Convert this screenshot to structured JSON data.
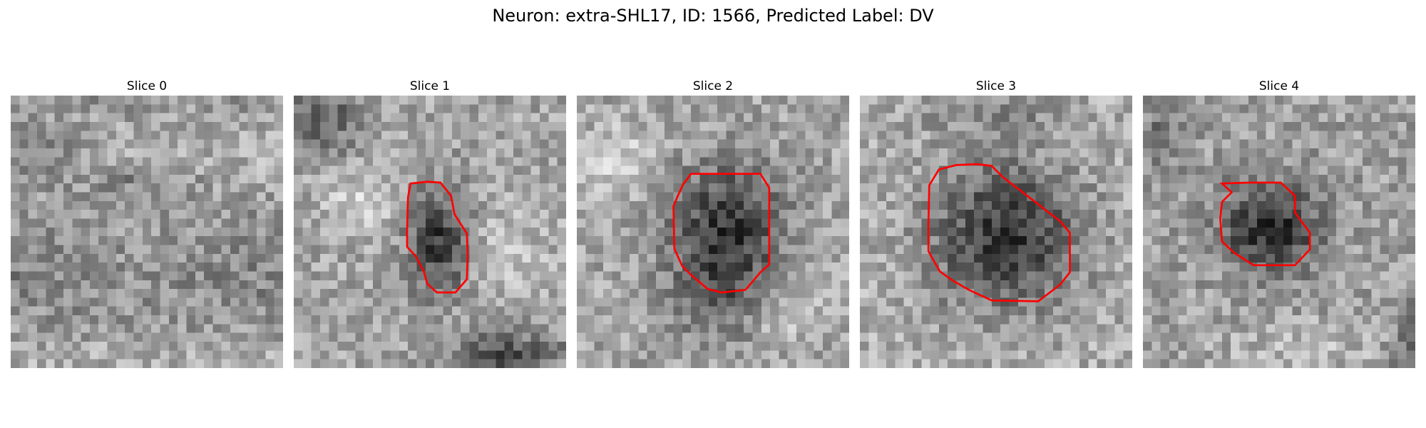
{
  "figure": {
    "title": "Neuron: extra-SHL17, ID: 1566, Predicted Label: DV"
  },
  "panels": [
    {
      "title": "Slice 0",
      "has_contour": false,
      "contour_color": "#ff0000"
    },
    {
      "title": "Slice 1",
      "has_contour": true,
      "contour_color": "#ff0000"
    },
    {
      "title": "Slice 2",
      "has_contour": true,
      "contour_color": "#ff0000"
    },
    {
      "title": "Slice 3",
      "has_contour": true,
      "contour_color": "#ff0000"
    },
    {
      "title": "Slice 4",
      "has_contour": true,
      "contour_color": "#ff0000"
    }
  ]
}
